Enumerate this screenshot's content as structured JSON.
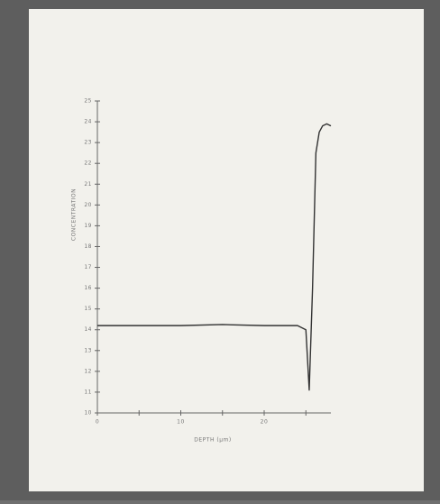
{
  "chart_data": {
    "type": "line",
    "xlabel": "DEPTH (µm)",
    "ylabel": "CONCENTRATION",
    "x": [
      0,
      5,
      10,
      15,
      20,
      24,
      25,
      25.4,
      25.8,
      26.2,
      26.6,
      27,
      27.5,
      28
    ],
    "series": [
      {
        "color": "#333333",
        "values": [
          14.2,
          14.2,
          14.2,
          14.25,
          14.2,
          14.2,
          14.0,
          11.1,
          16,
          22.5,
          23.5,
          23.8,
          23.9,
          23.8
        ]
      }
    ],
    "xlim": [
      0,
      28
    ],
    "xticks": [
      0,
      10,
      20
    ],
    "xminor_ticks": [
      5,
      15,
      25
    ],
    "ylim": [
      10,
      25
    ],
    "yticks": [
      10,
      11,
      12,
      13,
      14,
      15,
      16,
      17,
      18,
      19,
      20,
      21,
      22,
      23,
      24,
      25
    ]
  }
}
